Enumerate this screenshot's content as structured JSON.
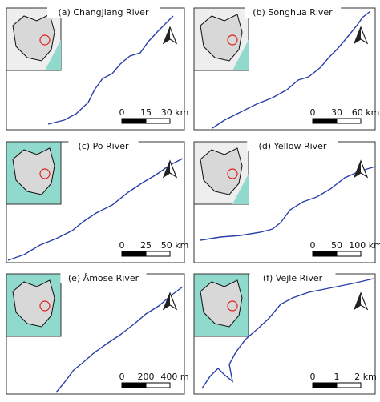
{
  "panels": [
    {
      "title": "(a) Changjiang River",
      "scale": [
        "0",
        "15",
        "30 km"
      ]
    },
    {
      "title": "(b) Songhua River",
      "scale": [
        "0",
        "30",
        "60 km"
      ]
    },
    {
      "title": "(c) Po River",
      "scale": [
        "0",
        "25",
        "50 km"
      ]
    },
    {
      "title": "(d) Yellow River",
      "scale": [
        "0",
        "50",
        "100 km"
      ]
    },
    {
      "title": "(e) Åmose River",
      "scale": [
        "0",
        "200",
        "400 m"
      ]
    },
    {
      "title": "(f) Vejle River",
      "scale": [
        "0",
        "1",
        "2 km"
      ]
    }
  ]
}
